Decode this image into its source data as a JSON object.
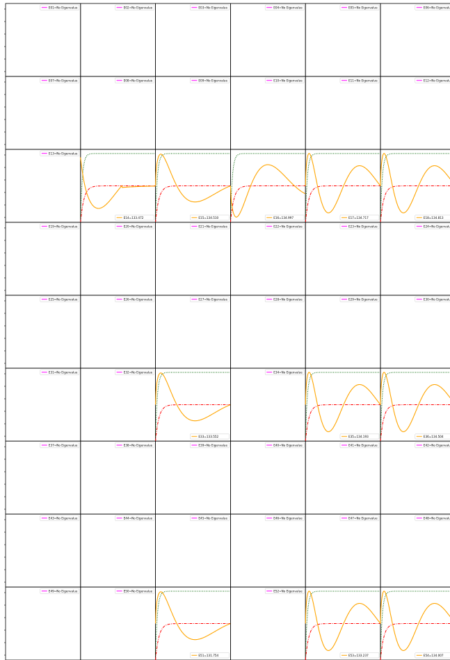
{
  "colors": {
    "wavefunction": "#ffa500",
    "no_eigenvalue_legend": "#ff00ff",
    "potential_dotted": "#006400",
    "potential_dashdot": "#ff0000",
    "frame": "#000000"
  },
  "chart_data": {
    "type": "line",
    "layout": "grid of small multiples, 9 rows x 6 columns",
    "legend_location": "each panel: upper-right when no eigenvalue, lower-right when eigenvalue found",
    "grid": false,
    "panels": [
      [
        {
          "legend": "E01=No Eigenvalue",
          "found": false
        },
        {
          "legend": "E02=No Eigenvalue",
          "found": false
        },
        {
          "legend": "E03=No Eigenvalue",
          "found": false
        },
        {
          "legend": "E04=No Eigenvalue",
          "found": false
        },
        {
          "legend": "E05=No Eigenvalue",
          "found": false
        },
        {
          "legend": "E06=No Eigenvalue",
          "found": false
        }
      ],
      [
        {
          "legend": "E07=No Eigenvalue",
          "found": false
        },
        {
          "legend": "E08=No Eigenvalue",
          "found": false
        },
        {
          "legend": "E09=No Eigenvalue",
          "found": false
        },
        {
          "legend": "E10=No Eigenvalue",
          "found": false
        },
        {
          "legend": "E11=No Eigenvalue",
          "found": false
        },
        {
          "legend": "E12=No Eigenvalue",
          "found": false
        }
      ],
      [
        {
          "legend": "E13=No Eigenvalue",
          "found": false
        },
        {
          "legend": "E14=133.472",
          "found": true,
          "nodes": 1
        },
        {
          "legend": "E15=134.510",
          "found": true,
          "nodes": 2
        },
        {
          "legend": "E16=134.997",
          "found": true,
          "nodes": 3
        },
        {
          "legend": "E17=134.717",
          "found": true,
          "nodes": 4
        },
        {
          "legend": "E18=134.813",
          "found": true,
          "nodes": 4
        }
      ],
      [
        {
          "legend": "E19=No Eigenvalue",
          "found": false
        },
        {
          "legend": "E20=No Eigenvalue",
          "found": false
        },
        {
          "legend": "E21=No Eigenvalue",
          "found": false
        },
        {
          "legend": "E22=No Eigenvalue",
          "found": false
        },
        {
          "legend": "E23=No Eigenvalue",
          "found": false
        },
        {
          "legend": "E24=No Eigenvalue",
          "found": false
        }
      ],
      [
        {
          "legend": "E25=No Eigenvalue",
          "found": false
        },
        {
          "legend": "E26=No Eigenvalue",
          "found": false
        },
        {
          "legend": "E27=No Eigenvalue",
          "found": false
        },
        {
          "legend": "E28=No Eigenvalue",
          "found": false
        },
        {
          "legend": "E29=No Eigenvalue",
          "found": false
        },
        {
          "legend": "E30=No Eigenvalue",
          "found": false
        }
      ],
      [
        {
          "legend": "E31=No Eigenvalue",
          "found": false
        },
        {
          "legend": "E32=No Eigenvalue",
          "found": false
        },
        {
          "legend": "E33=133.552",
          "found": true,
          "nodes": 2
        },
        {
          "legend": "E34=No Eigenvalue",
          "found": false
        },
        {
          "legend": "E35=134.193",
          "found": true,
          "nodes": 4
        },
        {
          "legend": "E36=134.504",
          "found": true,
          "nodes": 4
        }
      ],
      [
        {
          "legend": "E37=No Eigenvalue",
          "found": false
        },
        {
          "legend": "E38=No Eigenvalue",
          "found": false
        },
        {
          "legend": "E39=No Eigenvalue",
          "found": false
        },
        {
          "legend": "E40=No Eigenvalue",
          "found": false
        },
        {
          "legend": "E41=No Eigenvalue",
          "found": false
        },
        {
          "legend": "E42=No Eigenvalue",
          "found": false
        }
      ],
      [
        {
          "legend": "E43=No Eigenvalue",
          "found": false
        },
        {
          "legend": "E44=No Eigenvalue",
          "found": false
        },
        {
          "legend": "E45=No Eigenvalue",
          "found": false
        },
        {
          "legend": "E46=No Eigenvalue",
          "found": false
        },
        {
          "legend": "E47=No Eigenvalue",
          "found": false
        },
        {
          "legend": "E48=No Eigenvalue",
          "found": false
        }
      ],
      [
        {
          "legend": "E49=No Eigenvalue",
          "found": false
        },
        {
          "legend": "E50=No Eigenvalue",
          "found": false
        },
        {
          "legend": "E51=131.754",
          "found": true,
          "nodes": 2
        },
        {
          "legend": "E52=No Eigenvalue",
          "found": false
        },
        {
          "legend": "E53=133.237",
          "found": true,
          "nodes": 4
        },
        {
          "legend": "E54=134.007",
          "found": true,
          "nodes": 4
        }
      ]
    ]
  }
}
